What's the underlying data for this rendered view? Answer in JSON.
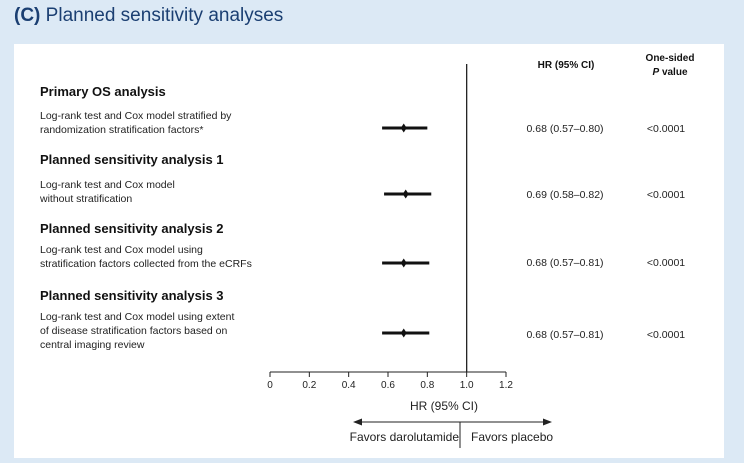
{
  "panel": {
    "letter": "(C)",
    "title": "Planned sensitivity analyses"
  },
  "columns": {
    "hr_header": "HR (95% CI)",
    "p_header_line1": "One-sided",
    "p_header_p": "P",
    "p_header_value": "value"
  },
  "sections": [
    {
      "title": "Primary OS analysis",
      "method_lines": [
        "Log-rank test and Cox model stratified by",
        "randomization stratification factors*"
      ]
    },
    {
      "title": "Planned sensitivity analysis 1",
      "method_lines": [
        "Log-rank test and Cox model",
        "without stratification"
      ]
    },
    {
      "title": "Planned sensitivity analysis 2",
      "method_lines": [
        "Log-rank test and Cox model using",
        "stratification factors collected from the eCRFs"
      ]
    },
    {
      "title": "Planned sensitivity analysis 3",
      "method_lines": [
        "Log-rank test and Cox model using extent",
        "of disease stratification factors based on",
        "central imaging review"
      ]
    }
  ],
  "chart_data": {
    "type": "forest",
    "xlabel": "HR (95% CI)",
    "xlim": [
      0,
      1.2
    ],
    "ticks": [
      "0",
      "0.2",
      "0.4",
      "0.6",
      "0.8",
      "1.0",
      "1.2"
    ],
    "tick_values": [
      0,
      0.2,
      0.4,
      0.6,
      0.8,
      1.0,
      1.2
    ],
    "reference_line": 1.0,
    "rows": [
      {
        "hr": 0.68,
        "lower": 0.57,
        "upper": 0.8,
        "hr_text": "0.68 (0.57–0.80)",
        "p_text": "<0.0001"
      },
      {
        "hr": 0.69,
        "lower": 0.58,
        "upper": 0.82,
        "hr_text": "0.69 (0.58–0.82)",
        "p_text": "<0.0001"
      },
      {
        "hr": 0.68,
        "lower": 0.57,
        "upper": 0.81,
        "hr_text": "0.68 (0.57–0.81)",
        "p_text": "<0.0001"
      },
      {
        "hr": 0.68,
        "lower": 0.57,
        "upper": 0.81,
        "hr_text": "0.68 (0.57–0.81)",
        "p_text": "<0.0001"
      }
    ],
    "favors_left": "Favors darolutamide",
    "favors_right": "Favors placebo"
  }
}
